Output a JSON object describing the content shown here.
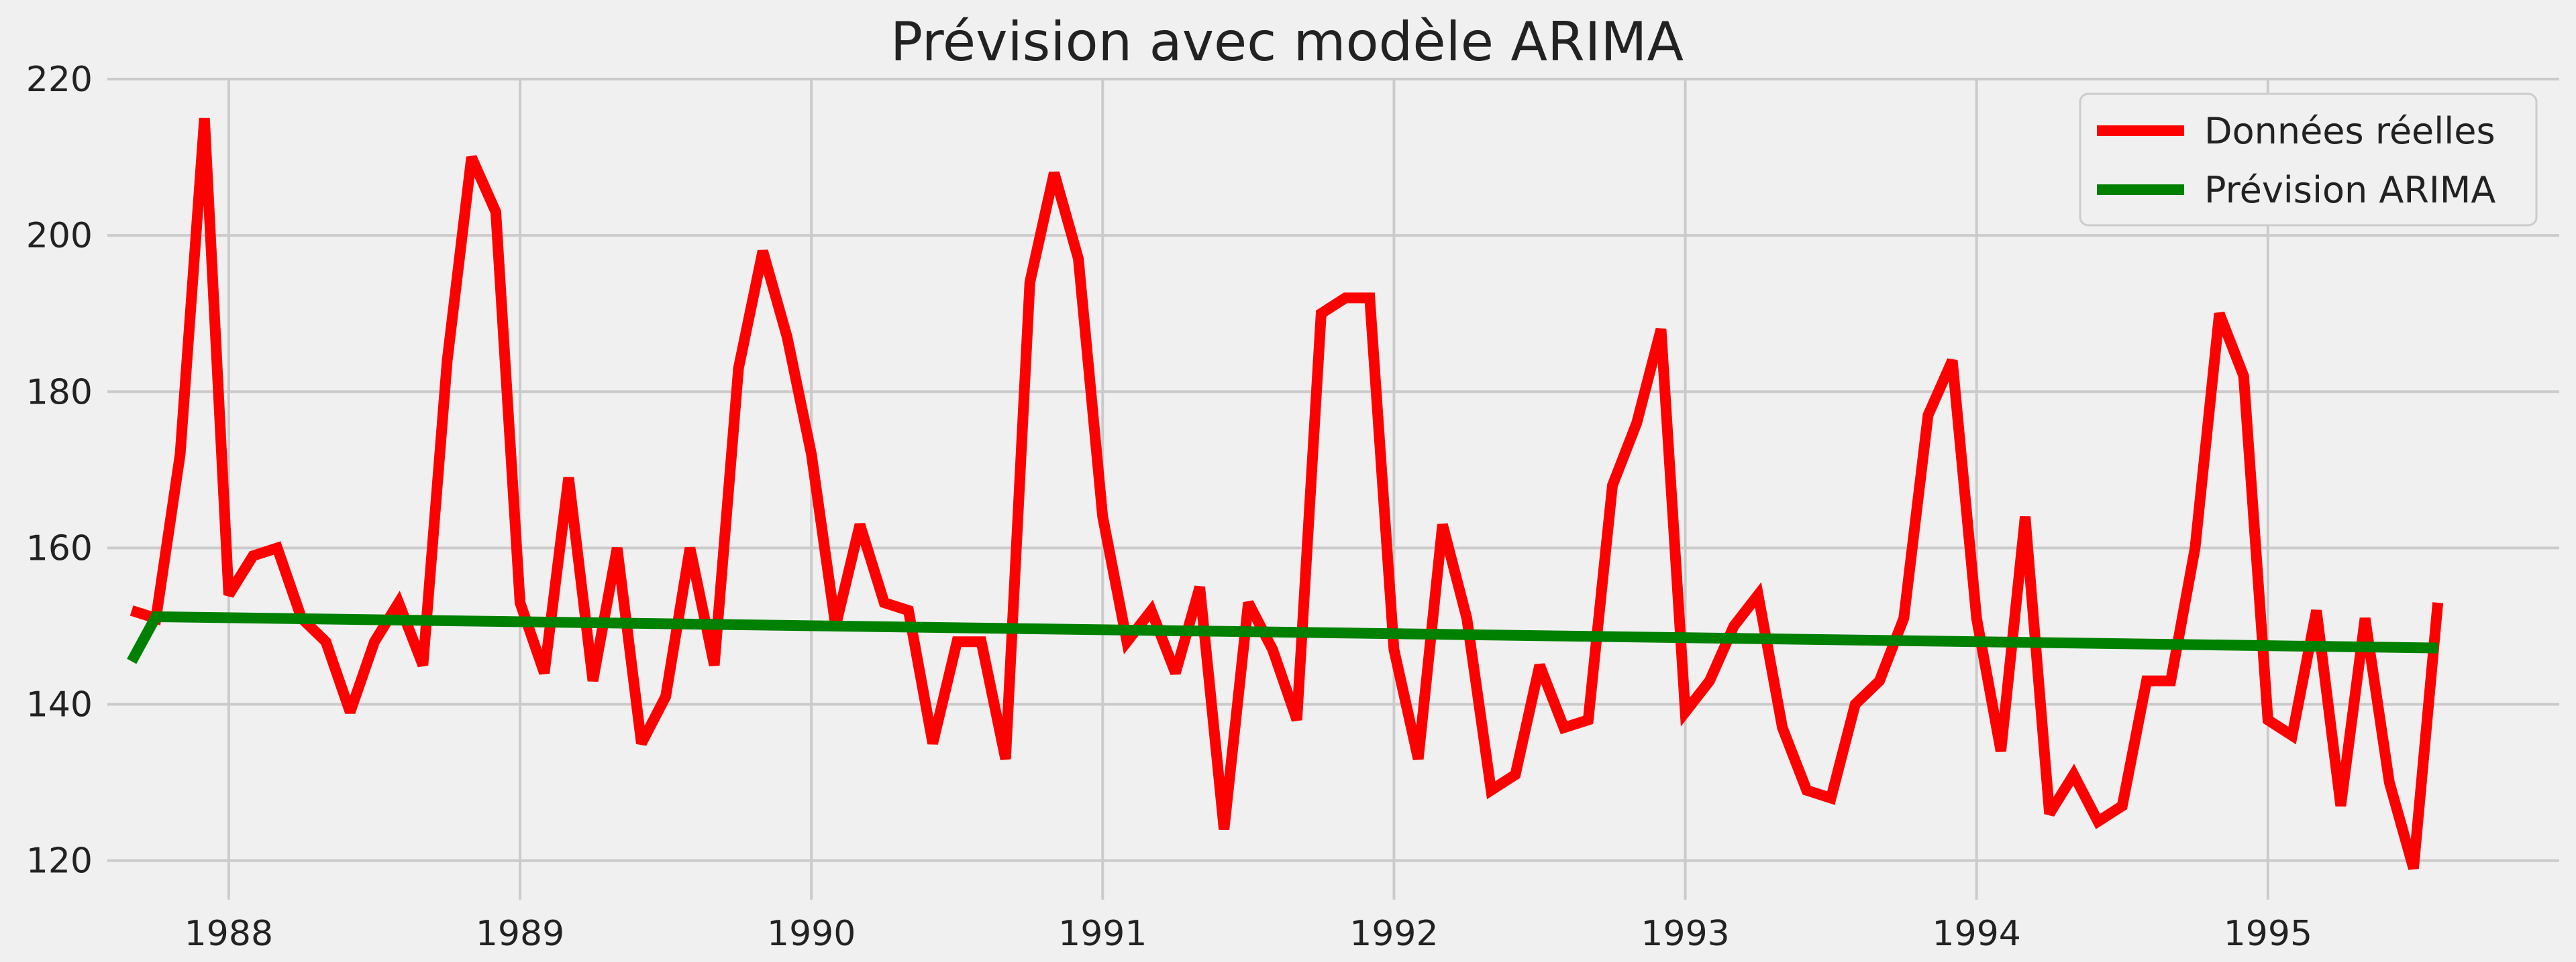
{
  "chart_data": {
    "type": "line",
    "title": "Prévision avec modèle ARIMA",
    "xlabel": "",
    "ylabel": "",
    "xlim": [
      "1987-08-01",
      "1996-01-01"
    ],
    "ylim": [
      115,
      220
    ],
    "x_ticks": [
      "1988",
      "1989",
      "1990",
      "1991",
      "1992",
      "1993",
      "1994",
      "1995"
    ],
    "y_ticks": [
      120,
      140,
      160,
      180,
      200,
      220
    ],
    "grid": true,
    "legend": "top-right",
    "series": [
      {
        "name": "Données réelles",
        "color": "#ff0000",
        "x": [
          "1987-09",
          "1987-10",
          "1987-11",
          "1987-12",
          "1988-01",
          "1988-02",
          "1988-03",
          "1988-04",
          "1988-05",
          "1988-06",
          "1988-07",
          "1988-08",
          "1988-09",
          "1988-10",
          "1988-11",
          "1988-12",
          "1989-01",
          "1989-02",
          "1989-03",
          "1989-04",
          "1989-05",
          "1989-06",
          "1989-07",
          "1989-08",
          "1989-09",
          "1989-10",
          "1989-11",
          "1989-12",
          "1990-01",
          "1990-02",
          "1990-03",
          "1990-04",
          "1990-05",
          "1990-06",
          "1990-07",
          "1990-08",
          "1990-09",
          "1990-10",
          "1990-11",
          "1990-12",
          "1991-01",
          "1991-02",
          "1991-03",
          "1991-04",
          "1991-05",
          "1991-06",
          "1991-07",
          "1991-08",
          "1991-09",
          "1991-10",
          "1991-11",
          "1991-12",
          "1992-01",
          "1992-02",
          "1992-03",
          "1992-04",
          "1992-05",
          "1992-06",
          "1992-07",
          "1992-08",
          "1992-09",
          "1992-10",
          "1992-11",
          "1992-12",
          "1993-01",
          "1993-02",
          "1993-03",
          "1993-04",
          "1993-05",
          "1993-06",
          "1993-07",
          "1993-08",
          "1993-09",
          "1993-10",
          "1993-11",
          "1993-12",
          "1994-01",
          "1994-02",
          "1994-03",
          "1994-04",
          "1994-05",
          "1994-06",
          "1994-07",
          "1994-08",
          "1994-09",
          "1994-10",
          "1994-11",
          "1994-12",
          "1995-01",
          "1995-02",
          "1995-03",
          "1995-04",
          "1995-05",
          "1995-06",
          "1995-07",
          "1995-08"
        ],
        "values": [
          152,
          151,
          172,
          215,
          154,
          159,
          160,
          151,
          148,
          139,
          148,
          153,
          145,
          184,
          210,
          203,
          153,
          144,
          169,
          143,
          160,
          135,
          141,
          160,
          145,
          183,
          198,
          187,
          172,
          150,
          163,
          153,
          152,
          135,
          148,
          148,
          133,
          194,
          208,
          197,
          164,
          148,
          152,
          144,
          155,
          124,
          153,
          147,
          138,
          190,
          192,
          192,
          147,
          133,
          163,
          151,
          129,
          131,
          145,
          137,
          138,
          168,
          176,
          188,
          139,
          143,
          150,
          154,
          137,
          129,
          128,
          140,
          143,
          151,
          177,
          184,
          151,
          134,
          164,
          126,
          131,
          125,
          127,
          143,
          143,
          160,
          190,
          182,
          138,
          136,
          152,
          127,
          151,
          130,
          119,
          153
        ]
      },
      {
        "name": "Prévision ARIMA",
        "color": "#008000",
        "x": [
          "1987-09",
          "1987-10",
          "1995-08"
        ],
        "values": [
          145.5,
          151.2,
          147.2
        ]
      }
    ]
  }
}
